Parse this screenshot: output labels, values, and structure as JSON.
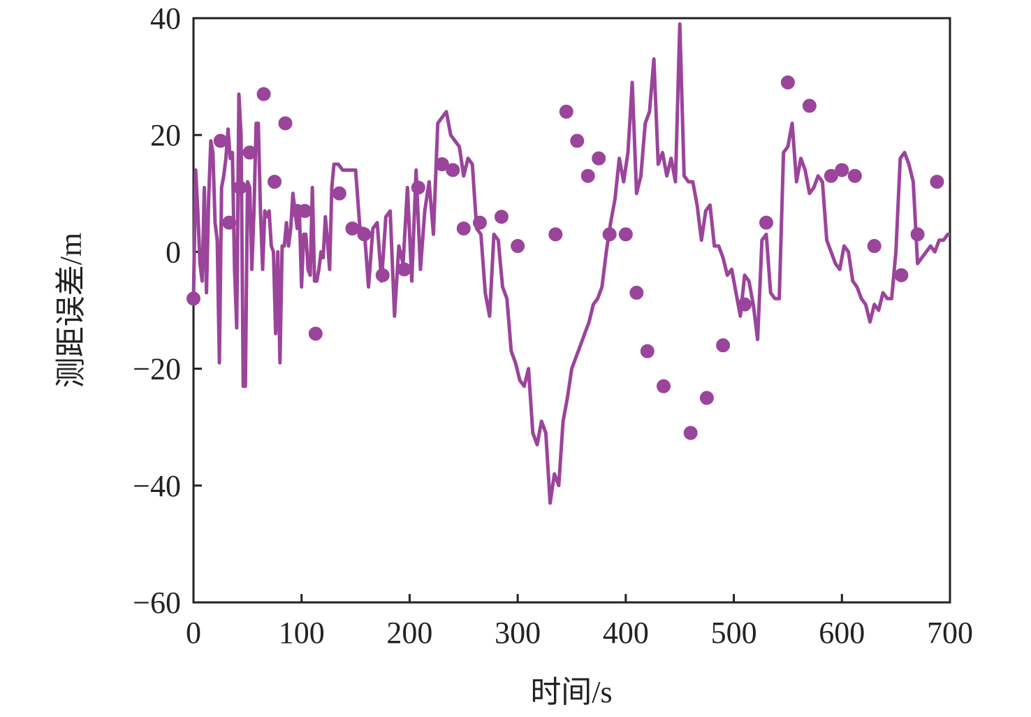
{
  "chart_data": {
    "type": "line",
    "xlabel": "时间/s",
    "ylabel": "测距误差/m",
    "xlim": [
      0,
      700
    ],
    "ylim": [
      -60,
      40
    ],
    "xticks": [
      0,
      100,
      200,
      300,
      400,
      500,
      600,
      700
    ],
    "yticks": [
      40,
      20,
      0,
      -20,
      -40,
      -60
    ],
    "xtick_labels": [
      "0",
      "100",
      "200",
      "300",
      "400",
      "500",
      "600",
      "700"
    ],
    "ytick_labels": [
      "40",
      "20",
      "0",
      "−20",
      "−40",
      "−60"
    ],
    "grid": false,
    "legend": "none",
    "series_color": "#9b449b",
    "series": [
      {
        "x": [
          0,
          2,
          4,
          6,
          8,
          10,
          12,
          14,
          16,
          18,
          20,
          22,
          24,
          26,
          28,
          30,
          32,
          34,
          36,
          38,
          40,
          42,
          44,
          46,
          48,
          50,
          52,
          54,
          56,
          58,
          60,
          62,
          64,
          66,
          68,
          70,
          72,
          74,
          76,
          78,
          80,
          82,
          84,
          86,
          88,
          90,
          92,
          94,
          96,
          98,
          100,
          102,
          104,
          106,
          108,
          110,
          112,
          114,
          116,
          118,
          120,
          122,
          124,
          126,
          128,
          130,
          134,
          138,
          142,
          146,
          150,
          154,
          158,
          162,
          166,
          170,
          174,
          178,
          182,
          186,
          190,
          194,
          198,
          202,
          206,
          210,
          214,
          218,
          222,
          226,
          230,
          234,
          238,
          242,
          246,
          250,
          254,
          258,
          262,
          266,
          270,
          274,
          278,
          282,
          286,
          290,
          294,
          298,
          302,
          306,
          310,
          314,
          318,
          322,
          326,
          330,
          334,
          338,
          342,
          346,
          350,
          354,
          358,
          362,
          366,
          370,
          374,
          378,
          382,
          386,
          390,
          394,
          398,
          402,
          406,
          410,
          414,
          418,
          422,
          426,
          430,
          434,
          438,
          442,
          446,
          450,
          454,
          458,
          462,
          466,
          470,
          474,
          478,
          482,
          486,
          490,
          494,
          498,
          502,
          506,
          510,
          514,
          518,
          522,
          526,
          530,
          534,
          538,
          542,
          546,
          550,
          554,
          558,
          562,
          566,
          570,
          574,
          578,
          582,
          586,
          590,
          594,
          598,
          602,
          606,
          610,
          614,
          618,
          622,
          626,
          630,
          634,
          638,
          642,
          646,
          650,
          654,
          658,
          662,
          666,
          670,
          674,
          678,
          682,
          686,
          690,
          694,
          698,
          700
        ],
        "y": [
          -8,
          14,
          7,
          -2,
          -5,
          11,
          -7,
          9,
          19,
          17,
          5,
          2,
          -19,
          11,
          13,
          16,
          21,
          16,
          17,
          -3,
          -13,
          27,
          20,
          -23,
          -23,
          12,
          11,
          -3,
          7,
          22,
          22,
          7,
          -3,
          7,
          6,
          7,
          1,
          0,
          -14,
          0,
          -19,
          1,
          1,
          5,
          1,
          4,
          10,
          7,
          4,
          7,
          -6,
          3,
          3,
          -3,
          -4,
          11,
          -5,
          -5,
          -3,
          0,
          -1,
          6,
          2,
          -3,
          11,
          15,
          15,
          14,
          14,
          14,
          14,
          4,
          4,
          -6,
          4,
          5,
          -5,
          6,
          7,
          -11,
          1,
          -2,
          11,
          -5,
          14,
          -3,
          7,
          12,
          3,
          22,
          23,
          24,
          20,
          19,
          18,
          13,
          16,
          15,
          4,
          3,
          -7,
          -11,
          3,
          2,
          -6,
          -8,
          -17,
          -19,
          -22,
          -23,
          -20,
          -31,
          -33,
          -29,
          -31,
          -43,
          -38,
          -40,
          -29,
          -25,
          -20,
          -18,
          -16,
          -14,
          -12,
          -9,
          -8,
          -6,
          0,
          5,
          9,
          16,
          12,
          17,
          29,
          10,
          13,
          22,
          24,
          33,
          15,
          17,
          13,
          16,
          12,
          39,
          13,
          12,
          12,
          8,
          2,
          7,
          8,
          1,
          1,
          -1,
          -4,
          -3,
          -7,
          -11,
          -4,
          -5,
          -9,
          -15,
          2,
          3,
          -7,
          -8,
          -8,
          17,
          18,
          22,
          12,
          16,
          14,
          10,
          11,
          13,
          12,
          2,
          0,
          -2,
          -3,
          1,
          0,
          -5,
          -6,
          -8,
          -9,
          -12,
          -9,
          -10,
          -7,
          -8,
          -8,
          0,
          16,
          17,
          15,
          12,
          -2,
          -1,
          0,
          1,
          0,
          2,
          2,
          3,
          3
        ],
        "markers_x": [
          0,
          25,
          33,
          43,
          52,
          65,
          75,
          85,
          96,
          103,
          113,
          135,
          147,
          158,
          175,
          195,
          208,
          230,
          240,
          250,
          265,
          285,
          300,
          335,
          345,
          355,
          365,
          375,
          385,
          400,
          410,
          420,
          435,
          460,
          475,
          490,
          510,
          530,
          550,
          570,
          590,
          600,
          612,
          630,
          655,
          670,
          688
        ],
        "markers_y": [
          -8,
          19,
          5,
          11,
          17,
          27,
          12,
          22,
          7,
          7,
          -14,
          10,
          4,
          3,
          -4,
          -3,
          11,
          15,
          14,
          4,
          5,
          6,
          1,
          3,
          24,
          19,
          13,
          16,
          3,
          3,
          -7,
          -17,
          -23,
          -31,
          -25,
          -16,
          -9,
          5,
          29,
          25,
          13,
          14,
          13,
          1,
          -4,
          3,
          12
        ]
      }
    ]
  }
}
